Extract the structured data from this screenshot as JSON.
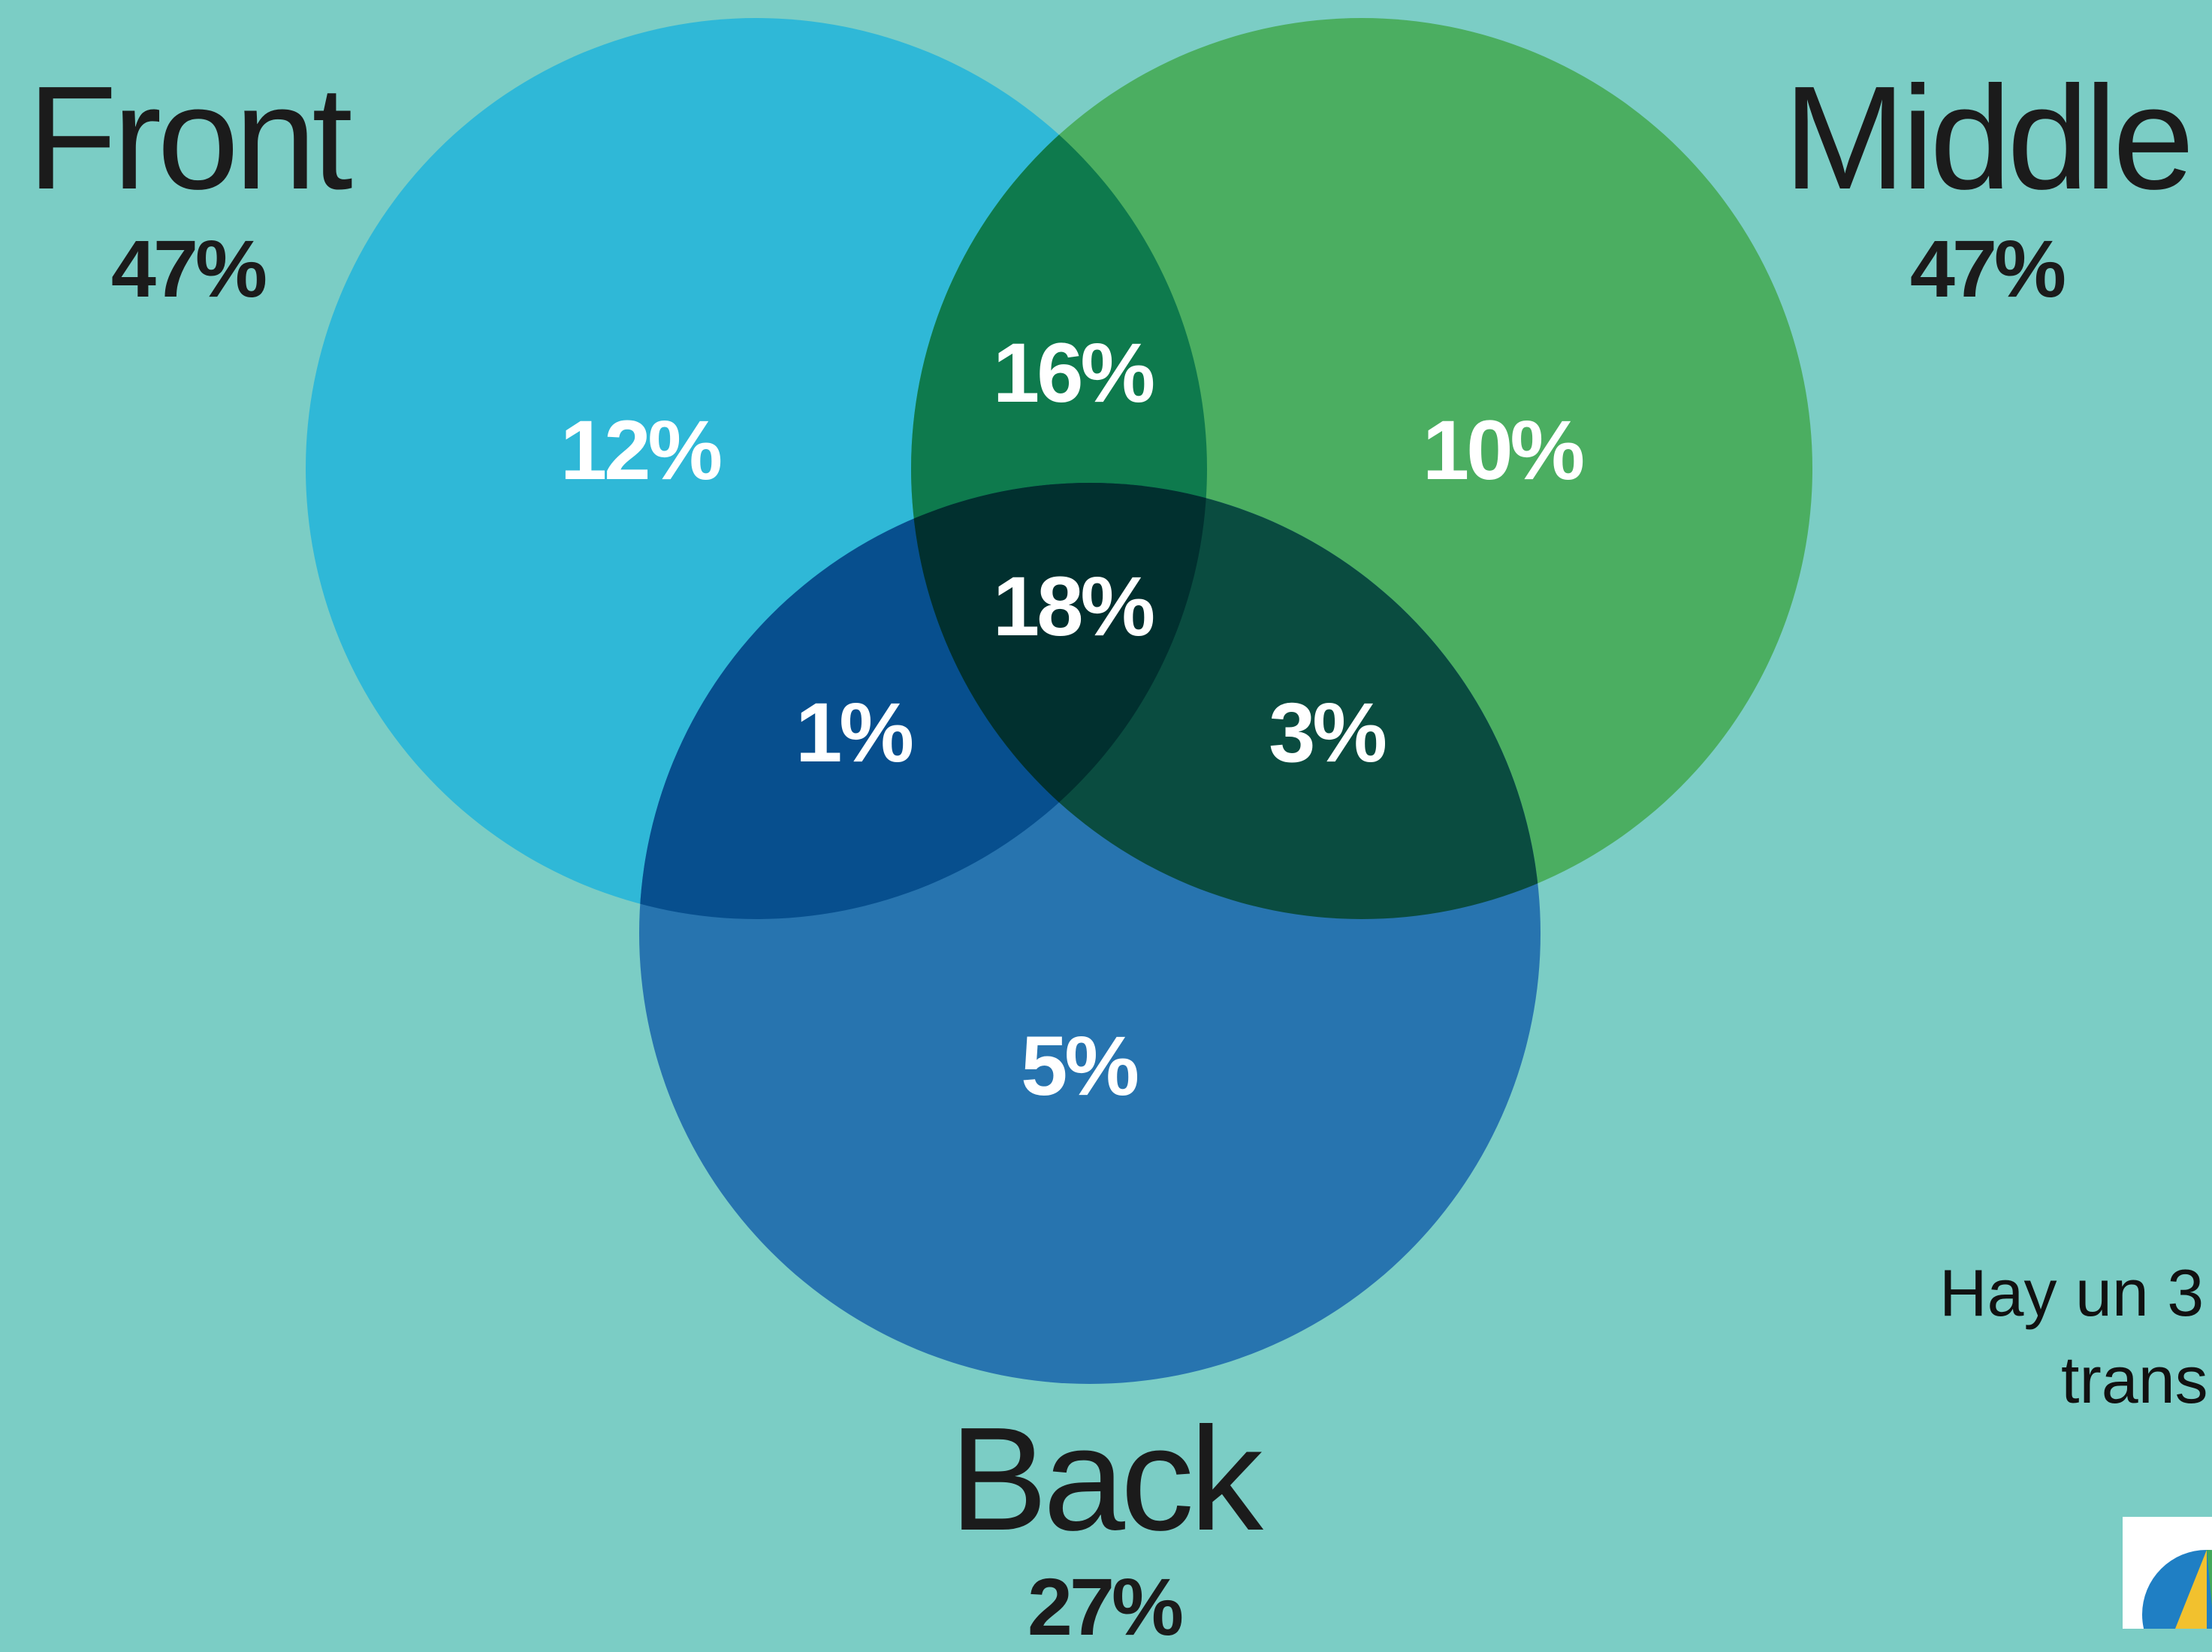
{
  "venn": {
    "sets": {
      "front": {
        "name": "Front",
        "total": "47%",
        "color": "#2fb8d7"
      },
      "middle": {
        "name": "Middle",
        "total": "47%",
        "color": "#4bae61"
      },
      "back": {
        "name": "Back",
        "total": "27%",
        "color": "#2774af"
      }
    },
    "regions": {
      "front_only": "12%",
      "middle_only": "10%",
      "back_only": "5%",
      "front_middle": "16%",
      "front_back": "1%",
      "middle_back": "3%",
      "all_three": "18%"
    },
    "overlap_colors": {
      "front_middle": "#0e7a4d",
      "front_back": "#074f8e",
      "middle_back": "#0a4c40",
      "all_three": "#01302f"
    }
  },
  "caption": {
    "line1": "Hay un 3",
    "line2": "trans"
  },
  "logo": {
    "icon": "logo-icon"
  }
}
